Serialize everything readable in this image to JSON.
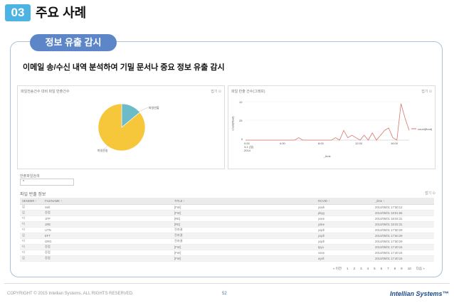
{
  "header": {
    "number": "03",
    "title": "주요 사례"
  },
  "section": {
    "pill": "정보 유출 감시",
    "description": "이메일 송/수신 내역 분석하여 기밀 문서나 중요 정보 유출 감시"
  },
  "pie_panel": {
    "title": "파일전송건수 대비 파일 반출건수",
    "control": "접기 ⊙",
    "labels": [
      "파일반출",
      "파일전송"
    ]
  },
  "line_panel": {
    "title": "파일 반출 건수(그래프)",
    "control": "접기 ⊙",
    "legend": "count(ftout)",
    "x_ticks": [
      "0:00\n3-1 (일)\n2014",
      "4:00",
      "8:00",
      "12:00",
      "16:00"
    ],
    "y_ticks": [
      "10",
      "0"
    ],
    "ylabel": "count(ftout)",
    "xlabel": "_time"
  },
  "chart_data": [
    {
      "type": "pie",
      "values": [
        0.14,
        0.86
      ],
      "labels": [
        "파일반출",
        "파일전송"
      ],
      "colors": [
        "#6bbcc8",
        "#f6c63b"
      ]
    },
    {
      "type": "line",
      "color": "#d8766a",
      "ylim": [
        0,
        17
      ],
      "x": [
        0,
        1,
        2,
        3,
        4,
        5,
        6,
        7,
        8,
        9,
        10,
        11,
        12,
        13,
        14,
        15,
        16,
        17,
        18,
        19,
        20,
        21,
        22,
        23,
        24,
        25,
        26,
        27,
        28,
        29,
        30,
        31,
        32,
        33,
        34,
        35,
        36,
        37,
        38,
        39,
        40
      ],
      "values": [
        0,
        0,
        0,
        0,
        0,
        0,
        0,
        0,
        0,
        0,
        0,
        0,
        0,
        1,
        0,
        0,
        0,
        0,
        0,
        0,
        0,
        0,
        1,
        0,
        4,
        1,
        2,
        1,
        0,
        2,
        0,
        3,
        0,
        2,
        4,
        5,
        1,
        0,
        15,
        9,
        4
      ]
    }
  ],
  "filter": {
    "label": "반출파일검색",
    "value": "*"
  },
  "table": {
    "title": "파일 반출 정보",
    "control": "접기 ⊙",
    "columns": [
      "SENDER ↑",
      "FILENAME ↑",
      "TITLE ↑",
      "RCVID ↑",
      "_time ↑"
    ],
    "rows": [
      [
        "김",
        "Sell",
        "[FW]",
        "yoah",
        "2014/06/01 17:50:12"
      ],
      [
        "김",
        "장점",
        "[FW]",
        "pkyg",
        "2014/06/01 18:51:56"
      ],
      [
        "이",
        "1FP",
        "[RE]",
        "yoes",
        "2014/06/01 18:02:31"
      ],
      [
        "이",
        "1RE",
        "[RE]",
        "ydee",
        "2014/06/01 18:02:31"
      ],
      [
        "이",
        "UTN",
        "전자결",
        "yopll",
        "2014/06/01 17:50:29"
      ],
      [
        "김",
        "EFT",
        "전자결",
        "yopll",
        "2014/06/01 17:50:29"
      ],
      [
        "이",
        "GRG",
        "전자결",
        "yopll",
        "2014/06/01 17:50:29"
      ],
      [
        "이",
        "장점",
        "[FW]",
        "tpyu",
        "2014/06/01 17:40:16"
      ],
      [
        "이",
        "장점",
        "[FW]",
        "vorw",
        "2014/06/01 17:40:16"
      ],
      [
        "김",
        "장점",
        "[FW]",
        "ayvll",
        "2014/06/01 17:40:16"
      ]
    ]
  },
  "pagination": [
    "« 이전",
    "1",
    "2",
    "3",
    "4",
    "5",
    "6",
    "7",
    "8",
    "9",
    "10",
    "다음 »"
  ],
  "footer": {
    "copyright": "COPYRIGHT © 2015 Intellian Systems. ALL RIGHTS RESERVED.",
    "page": "52",
    "logo": "Intellian Systems™"
  }
}
